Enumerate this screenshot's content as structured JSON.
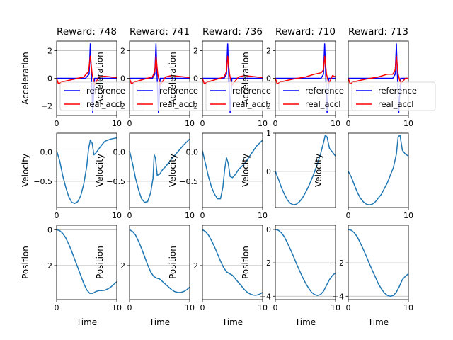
{
  "figure": {
    "background": "#ffffff",
    "grid_color": "#b0b0b0"
  },
  "chart_data": [
    {
      "type": "line",
      "panel": "acceleration",
      "title": "Reward: 748",
      "ylabel": "Acceleration",
      "xlabel": "",
      "xlim": [
        0,
        10
      ],
      "ylim": [
        -2.7,
        2.7
      ],
      "xticks": [
        0,
        10
      ],
      "yticks": [
        -2,
        0,
        2
      ],
      "grid": true,
      "legend": "lower-left",
      "series": [
        {
          "name": "reference",
          "color": "#0000ff",
          "x": [
            0,
            4.8,
            5.4,
            5.6,
            5.75,
            6.0,
            6.3,
            10
          ],
          "y": [
            0,
            0,
            0.3,
            2.5,
            0.5,
            -2.5,
            0,
            0
          ]
        },
        {
          "name": "real_accl",
          "color": "#ff0000",
          "x": [
            0,
            0.3,
            1,
            3,
            4.5,
            5.3,
            5.6,
            5.9,
            6.3,
            7,
            8,
            9,
            10
          ],
          "y": [
            0,
            -0.4,
            -0.25,
            -0.05,
            0.1,
            0.5,
            1.6,
            0.3,
            -0.5,
            0.1,
            0.15,
            0.1,
            0.05
          ]
        }
      ]
    },
    {
      "type": "line",
      "panel": "acceleration",
      "title": "Reward: 741",
      "ylabel": "Acceleration",
      "xlabel": "",
      "xlim": [
        0,
        10
      ],
      "ylim": [
        -2.7,
        2.7
      ],
      "xticks": [
        0,
        10
      ],
      "yticks": [
        -2,
        0,
        2
      ],
      "grid": true,
      "legend": "lower-left",
      "series": [
        {
          "name": "reference",
          "color": "#0000ff",
          "x": [
            0,
            3.8,
            4.2,
            4.4,
            4.55,
            4.8,
            5.1,
            10
          ],
          "y": [
            0,
            0,
            0.3,
            2.5,
            0.5,
            -2.5,
            0,
            0
          ]
        },
        {
          "name": "real_accl",
          "color": "#ff0000",
          "x": [
            0,
            0.3,
            1,
            2.5,
            3.8,
            4.2,
            4.4,
            4.7,
            5.1,
            6,
            7,
            8,
            10
          ],
          "y": [
            0,
            -0.4,
            -0.25,
            -0.05,
            0.1,
            0.5,
            1.6,
            0.3,
            -0.5,
            0.1,
            0.2,
            0.15,
            0.05
          ]
        }
      ]
    },
    {
      "type": "line",
      "panel": "acceleration",
      "title": "Reward: 736",
      "ylabel": "Acceleration",
      "xlabel": "",
      "xlim": [
        0,
        10
      ],
      "ylim": [
        -2.7,
        2.7
      ],
      "xticks": [
        0,
        10
      ],
      "yticks": [
        -2,
        0,
        2
      ],
      "grid": true,
      "legend": "lower-left",
      "series": [
        {
          "name": "reference",
          "color": "#0000ff",
          "x": [
            0,
            3.6,
            4.0,
            4.2,
            4.35,
            4.6,
            4.9,
            10
          ],
          "y": [
            0,
            0,
            0.3,
            2.5,
            0.5,
            -2.5,
            0,
            0
          ]
        },
        {
          "name": "real_accl",
          "color": "#ff0000",
          "x": [
            0,
            0.3,
            1,
            2.5,
            3.6,
            4.0,
            4.2,
            4.5,
            4.9,
            6,
            7,
            8,
            10
          ],
          "y": [
            0,
            -0.4,
            -0.25,
            -0.05,
            0.1,
            0.5,
            1.6,
            0.3,
            -0.5,
            0.1,
            0.2,
            0.15,
            0.05
          ]
        }
      ]
    },
    {
      "type": "line",
      "panel": "acceleration",
      "title": "Reward: 710",
      "ylabel": "Acceleration",
      "xlabel": "",
      "xlim": [
        0,
        10
      ],
      "ylim": [
        -2.7,
        2.7
      ],
      "xticks": [
        0,
        10
      ],
      "yticks": [
        -2,
        0,
        2
      ],
      "grid": true,
      "legend": "lower-left",
      "series": [
        {
          "name": "reference",
          "color": "#0000ff",
          "x": [
            0,
            7.6,
            8.0,
            8.2,
            8.35,
            8.6,
            8.9,
            10
          ],
          "y": [
            0,
            0,
            0.3,
            2.5,
            0.5,
            -2.5,
            0,
            0
          ]
        },
        {
          "name": "real_accl",
          "color": "#ff0000",
          "x": [
            0,
            0.3,
            1,
            3,
            5,
            6.5,
            7.6,
            8.0,
            8.2,
            8.5,
            8.9,
            9.5,
            10
          ],
          "y": [
            0,
            -0.4,
            -0.25,
            -0.05,
            0.1,
            0.3,
            0.4,
            0.6,
            1.6,
            0.3,
            -0.4,
            0.2,
            0.1
          ]
        }
      ]
    },
    {
      "type": "line",
      "panel": "acceleration",
      "title": "Reward: 713",
      "ylabel": "",
      "xlabel": "",
      "xlim": [
        0,
        10
      ],
      "ylim": [
        -2.7,
        2.7
      ],
      "xticks": [
        0,
        10
      ],
      "yticks": [],
      "grid": true,
      "legend": "lower-left",
      "series": [
        {
          "name": "reference",
          "color": "#0000ff",
          "x": [
            0,
            7.4,
            7.8,
            8.0,
            8.15,
            8.4,
            8.7,
            10
          ],
          "y": [
            0,
            0,
            0.3,
            2.5,
            0.5,
            -2.5,
            0,
            0
          ]
        },
        {
          "name": "real_accl",
          "color": "#ff0000",
          "x": [
            0,
            0.3,
            1,
            3,
            5,
            6.5,
            7.4,
            7.8,
            8.0,
            8.3,
            8.7,
            9.5,
            10
          ],
          "y": [
            0,
            -0.4,
            -0.25,
            -0.05,
            0.1,
            0.3,
            0.3,
            0.6,
            1.6,
            0.3,
            -0.4,
            0.0,
            0.0
          ]
        }
      ]
    },
    {
      "type": "line",
      "panel": "velocity",
      "title": "",
      "ylabel": "Velocity",
      "xlabel": "",
      "xlim": [
        0,
        10
      ],
      "ylim": [
        -0.95,
        0.32
      ],
      "xticks": [
        0,
        10
      ],
      "yticks": [
        0.0,
        -0.5
      ],
      "grid": true,
      "series": [
        {
          "name": "",
          "color": "#1f77b4",
          "x": [
            0,
            0.5,
            1,
            1.5,
            2,
            2.5,
            3,
            3.5,
            4,
            4.5,
            5,
            5.3,
            5.6,
            5.9,
            6.2,
            6.5,
            7,
            7.5,
            8,
            9,
            10
          ],
          "y": [
            0.02,
            -0.15,
            -0.4,
            -0.6,
            -0.76,
            -0.86,
            -0.88,
            -0.85,
            -0.75,
            -0.55,
            -0.25,
            0.05,
            0.2,
            0.15,
            -0.05,
            -0.02,
            0.05,
            0.12,
            0.18,
            0.22,
            0.24
          ]
        }
      ]
    },
    {
      "type": "line",
      "panel": "velocity",
      "title": "",
      "ylabel": "Velocity",
      "xlabel": "",
      "xlim": [
        0,
        10
      ],
      "ylim": [
        -0.95,
        0.32
      ],
      "xticks": [
        0,
        10
      ],
      "yticks": [
        0.0,
        -0.5
      ],
      "grid": true,
      "series": [
        {
          "name": "",
          "color": "#1f77b4",
          "x": [
            0,
            0.5,
            1,
            1.5,
            2,
            2.5,
            3,
            3.5,
            3.9,
            4.1,
            4.3,
            4.6,
            5,
            5.5,
            6,
            7,
            8,
            9,
            10
          ],
          "y": [
            0.02,
            -0.2,
            -0.45,
            -0.65,
            -0.8,
            -0.86,
            -0.85,
            -0.7,
            -0.45,
            -0.05,
            -0.1,
            -0.4,
            -0.38,
            -0.3,
            -0.25,
            -0.12,
            0.0,
            0.12,
            0.22
          ]
        }
      ]
    },
    {
      "type": "line",
      "panel": "velocity",
      "title": "",
      "ylabel": "Velocity",
      "xlabel": "",
      "xlim": [
        0,
        10
      ],
      "ylim": [
        -0.95,
        0.32
      ],
      "xticks": [
        0,
        10
      ],
      "yticks": [
        0.0,
        -0.5
      ],
      "grid": true,
      "series": [
        {
          "name": "",
          "color": "#1f77b4",
          "x": [
            0,
            0.5,
            1,
            1.5,
            2,
            2.5,
            3,
            3.4,
            3.7,
            4.0,
            4.3,
            4.6,
            5,
            5.5,
            6,
            7,
            8,
            9,
            10
          ],
          "y": [
            0.02,
            -0.2,
            -0.42,
            -0.6,
            -0.72,
            -0.8,
            -0.8,
            -0.6,
            -0.3,
            -0.1,
            -0.2,
            -0.42,
            -0.44,
            -0.38,
            -0.3,
            -0.2,
            -0.05,
            0.1,
            0.2
          ]
        }
      ]
    },
    {
      "type": "line",
      "panel": "velocity",
      "title": "",
      "ylabel": "Velocity",
      "xlabel": "",
      "xlim": [
        0,
        10
      ],
      "ylim": [
        -0.95,
        1.0
      ],
      "xticks": [],
      "yticks": [
        1,
        0
      ],
      "grid": true,
      "series": [
        {
          "name": "",
          "color": "#1f77b4",
          "x": [
            0,
            0.5,
            1,
            1.5,
            2,
            2.5,
            3,
            3.5,
            4,
            4.5,
            5,
            5.5,
            6,
            6.5,
            7,
            7.5,
            8,
            8.3,
            8.6,
            9,
            9.5,
            10
          ],
          "y": [
            0.0,
            -0.2,
            -0.42,
            -0.6,
            -0.75,
            -0.84,
            -0.88,
            -0.86,
            -0.8,
            -0.7,
            -0.56,
            -0.4,
            -0.22,
            -0.02,
            0.2,
            0.45,
            0.75,
            0.95,
            0.9,
            0.6,
            0.5,
            0.4
          ]
        }
      ]
    },
    {
      "type": "line",
      "panel": "velocity",
      "title": "",
      "ylabel": "Velocity",
      "xlabel": "",
      "xlim": [
        0,
        10
      ],
      "ylim": [
        -0.95,
        1.0
      ],
      "xticks": [
        0,
        10
      ],
      "yticks": [],
      "grid": true,
      "series": [
        {
          "name": "",
          "color": "#1f77b4",
          "x": [
            0,
            0.5,
            1,
            1.5,
            2,
            2.5,
            3,
            3.5,
            4,
            4.5,
            5,
            5.5,
            6,
            6.5,
            7,
            7.5,
            8,
            8.3,
            8.6,
            9,
            9.5,
            10
          ],
          "y": [
            0.0,
            -0.15,
            -0.35,
            -0.55,
            -0.7,
            -0.8,
            -0.86,
            -0.88,
            -0.86,
            -0.8,
            -0.7,
            -0.6,
            -0.45,
            -0.3,
            -0.1,
            0.1,
            0.45,
            0.9,
            0.95,
            0.55,
            0.45,
            0.4
          ]
        }
      ]
    },
    {
      "type": "line",
      "panel": "position",
      "title": "",
      "ylabel": "Position",
      "xlabel": "Time",
      "xlim": [
        0,
        10
      ],
      "ylim": [
        -3.9,
        0.25
      ],
      "xticks": [
        0,
        10
      ],
      "yticks": [
        0,
        -2
      ],
      "grid": true,
      "series": [
        {
          "name": "",
          "color": "#1f77b4",
          "x": [
            0,
            0.5,
            1,
            1.5,
            2,
            2.5,
            3,
            3.5,
            4,
            4.5,
            5,
            5.5,
            6,
            6.5,
            7,
            7.5,
            8,
            8.5,
            9,
            9.5,
            10
          ],
          "y": [
            0,
            -0.05,
            -0.2,
            -0.45,
            -0.8,
            -1.2,
            -1.65,
            -2.1,
            -2.55,
            -3.0,
            -3.35,
            -3.55,
            -3.55,
            -3.45,
            -3.4,
            -3.4,
            -3.38,
            -3.3,
            -3.2,
            -3.05,
            -2.9
          ]
        }
      ]
    },
    {
      "type": "line",
      "panel": "position",
      "title": "",
      "ylabel": "Position",
      "xlabel": "Time",
      "xlim": [
        0,
        10
      ],
      "ylim": [
        -3.9,
        0.25
      ],
      "xticks": [
        0,
        10
      ],
      "yticks": [
        -2
      ],
      "grid": true,
      "series": [
        {
          "name": "",
          "color": "#1f77b4",
          "x": [
            0,
            0.5,
            1,
            1.5,
            2,
            2.5,
            3,
            3.5,
            4,
            4.5,
            5,
            5.5,
            6,
            6.5,
            7,
            7.5,
            8,
            8.5,
            9,
            9.5,
            10
          ],
          "y": [
            0,
            -0.1,
            -0.3,
            -0.65,
            -1.05,
            -1.5,
            -1.95,
            -2.35,
            -2.6,
            -2.7,
            -2.75,
            -2.9,
            -3.05,
            -3.2,
            -3.35,
            -3.45,
            -3.5,
            -3.5,
            -3.45,
            -3.35,
            -3.2
          ]
        }
      ]
    },
    {
      "type": "line",
      "panel": "position",
      "title": "",
      "ylabel": "Position",
      "xlabel": "Time",
      "xlim": [
        0,
        10
      ],
      "ylim": [
        -3.9,
        0.25
      ],
      "xticks": [
        0,
        10
      ],
      "yticks": [
        -2
      ],
      "grid": true,
      "series": [
        {
          "name": "",
          "color": "#1f77b4",
          "x": [
            0,
            0.5,
            1,
            1.5,
            2,
            2.5,
            3,
            3.5,
            4,
            4.5,
            5,
            5.5,
            6,
            6.5,
            7,
            7.5,
            8,
            8.5,
            9,
            9.5,
            10
          ],
          "y": [
            0,
            -0.1,
            -0.3,
            -0.6,
            -0.95,
            -1.35,
            -1.75,
            -2.1,
            -2.35,
            -2.45,
            -2.55,
            -2.75,
            -2.95,
            -3.15,
            -3.35,
            -3.5,
            -3.6,
            -3.65,
            -3.65,
            -3.6,
            -3.5
          ]
        }
      ]
    },
    {
      "type": "line",
      "panel": "position",
      "title": "",
      "ylabel": "Position",
      "xlabel": "Time",
      "xlim": [
        0,
        10
      ],
      "ylim": [
        -4.2,
        0.25
      ],
      "xticks": [
        0,
        10
      ],
      "yticks": [
        0,
        -2,
        -4
      ],
      "grid": true,
      "series": [
        {
          "name": "",
          "color": "#1f77b4",
          "x": [
            0,
            0.5,
            1,
            1.5,
            2,
            2.5,
            3,
            3.5,
            4,
            4.5,
            5,
            5.5,
            6,
            6.5,
            7,
            7.5,
            8,
            8.5,
            9,
            9.5,
            10
          ],
          "y": [
            0,
            -0.05,
            -0.2,
            -0.45,
            -0.8,
            -1.2,
            -1.6,
            -2.05,
            -2.45,
            -2.85,
            -3.2,
            -3.5,
            -3.75,
            -3.9,
            -3.95,
            -3.9,
            -3.7,
            -3.35,
            -3.0,
            -2.75,
            -2.6
          ]
        }
      ]
    },
    {
      "type": "line",
      "panel": "position",
      "title": "",
      "ylabel": "",
      "xlabel": "Time",
      "xlim": [
        0,
        10
      ],
      "ylim": [
        -4.2,
        0.25
      ],
      "xticks": [
        0,
        10
      ],
      "yticks": [
        -2,
        -4
      ],
      "grid": true,
      "series": [
        {
          "name": "",
          "color": "#1f77b4",
          "x": [
            0,
            0.5,
            1,
            1.5,
            2,
            2.5,
            3,
            3.5,
            4,
            4.5,
            5,
            5.5,
            6,
            6.5,
            7,
            7.5,
            8,
            8.5,
            9,
            9.5,
            10
          ],
          "y": [
            0,
            -0.05,
            -0.2,
            -0.45,
            -0.8,
            -1.2,
            -1.6,
            -2.05,
            -2.45,
            -2.85,
            -3.25,
            -3.55,
            -3.8,
            -3.95,
            -4.0,
            -3.95,
            -3.75,
            -3.4,
            -3.0,
            -2.8,
            -2.65
          ]
        }
      ]
    }
  ]
}
